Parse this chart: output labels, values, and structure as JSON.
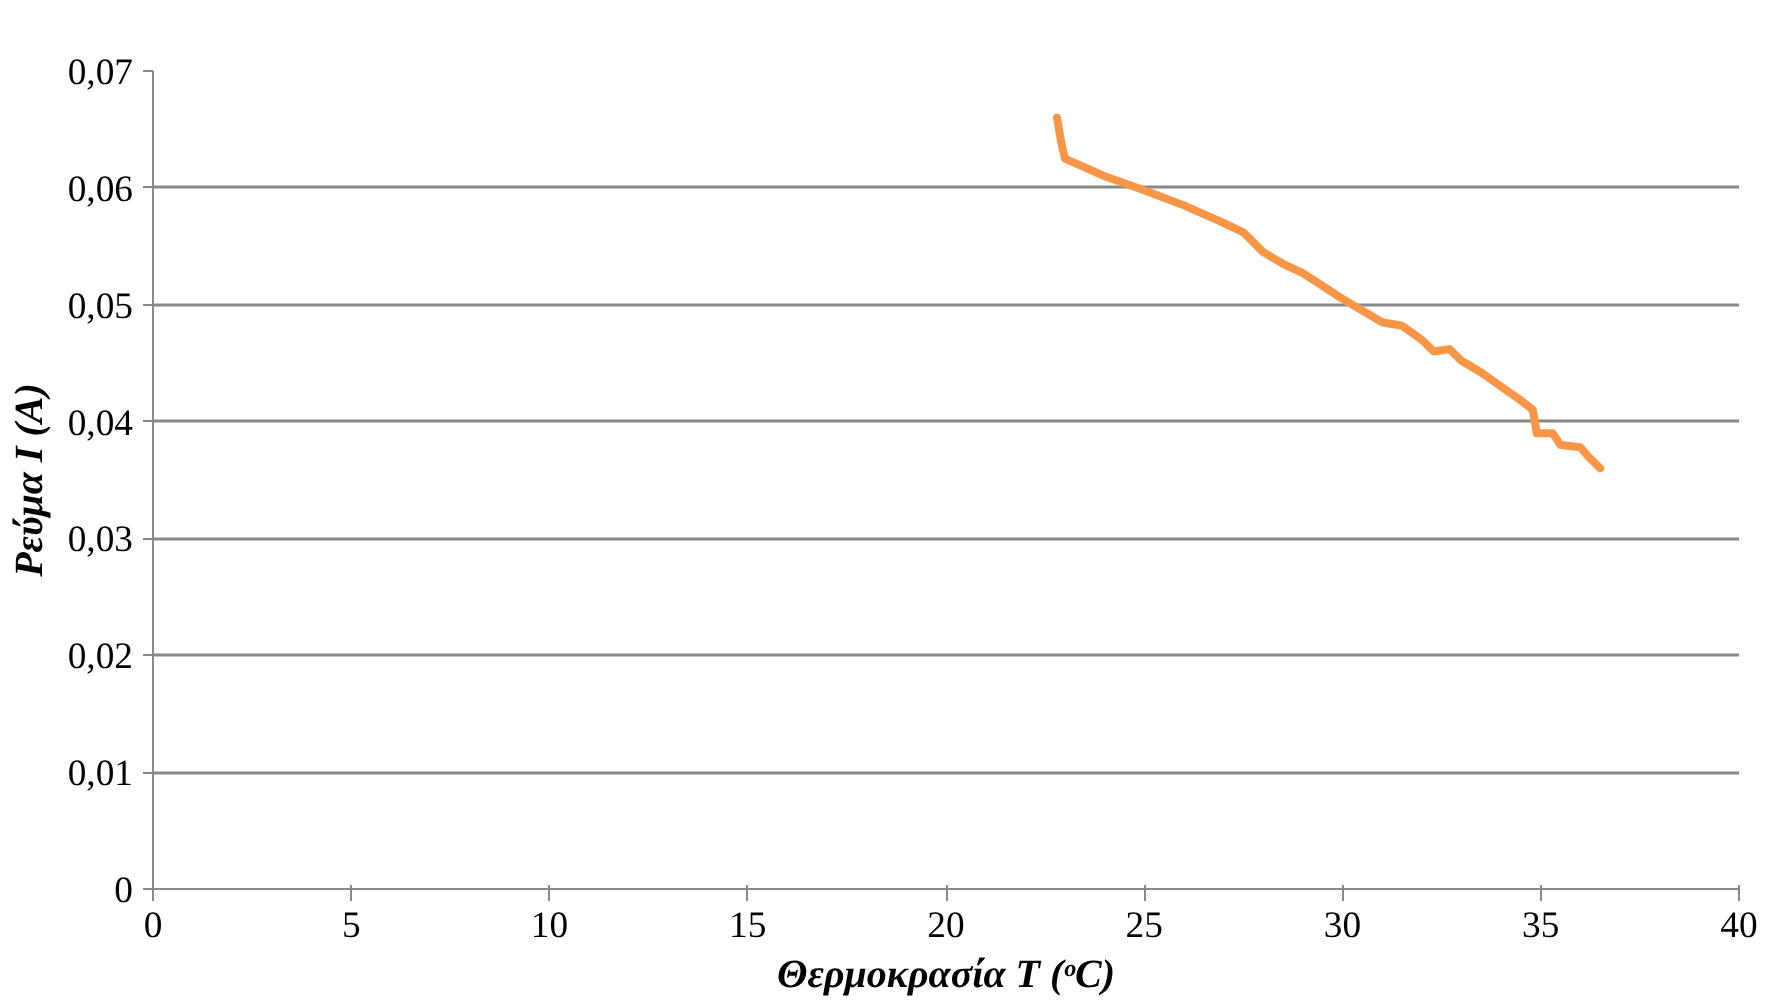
{
  "chart_data": {
    "type": "line",
    "xlabel": "Θερμοκρασία T (ᵒC)",
    "ylabel": "Ρεύμα I (A)",
    "x": [
      22.8,
      22.9,
      23.0,
      24,
      25,
      26,
      27,
      27.5,
      28,
      28.5,
      29,
      30,
      31,
      31.5,
      32,
      32.3,
      32.7,
      33,
      33.5,
      34,
      34.5,
      34.8,
      34.9,
      35.3,
      35.5,
      36,
      36.2,
      36.5
    ],
    "series": [
      {
        "color": "#f79646",
        "values": [
          0.066,
          0.064,
          0.0625,
          0.061,
          0.0598,
          0.0585,
          0.057,
          0.0562,
          0.0545,
          0.0535,
          0.0527,
          0.0505,
          0.0485,
          0.0482,
          0.047,
          0.046,
          0.0462,
          0.0452,
          0.0442,
          0.043,
          0.0418,
          0.041,
          0.039,
          0.039,
          0.038,
          0.0378,
          0.037,
          0.036
        ]
      }
    ],
    "xlim": [
      0,
      40
    ],
    "xticks": [
      0,
      5,
      10,
      15,
      20,
      25,
      30,
      35,
      40
    ],
    "ylim": [
      0,
      0.07
    ],
    "yticks": [
      {
        "value": 0,
        "label": "0"
      },
      {
        "value": 0.01,
        "label": "0,01"
      },
      {
        "value": 0.02,
        "label": "0,02"
      },
      {
        "value": 0.03,
        "label": "0,03"
      },
      {
        "value": 0.04,
        "label": "0,04"
      },
      {
        "value": 0.05,
        "label": "0,05"
      },
      {
        "value": 0.06,
        "label": "0,06"
      },
      {
        "value": 0.07,
        "label": "0,07"
      }
    ],
    "grid": "y",
    "marker": "none",
    "line_style": "solid"
  }
}
